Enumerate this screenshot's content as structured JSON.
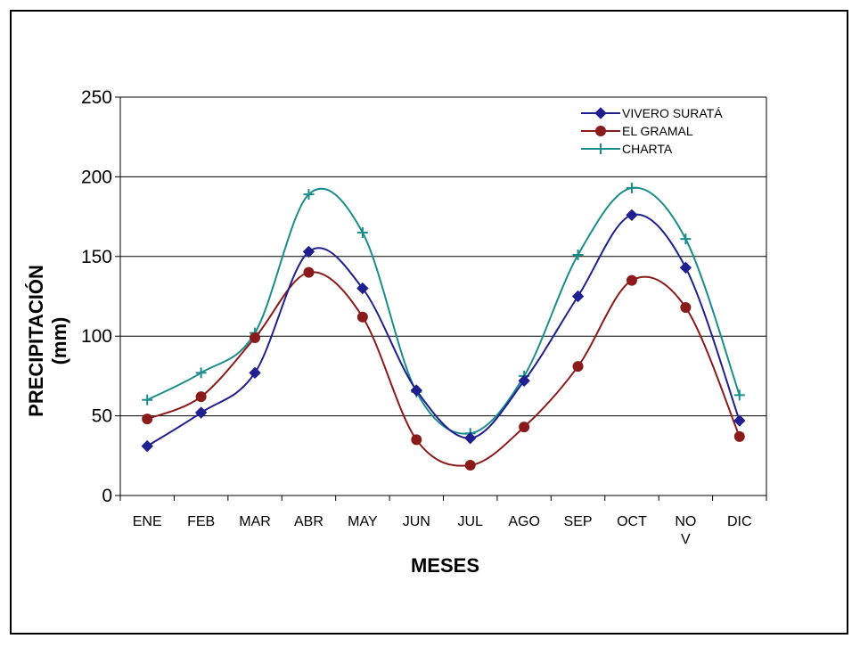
{
  "chart_data": {
    "type": "line",
    "title": "",
    "xlabel": "MESES",
    "ylabel_lines": [
      "PRECIPITACIÓN",
      "(mm)"
    ],
    "categories": [
      "ENE",
      "FEB",
      "MAR",
      "ABR",
      "MAY",
      "JUN",
      "JUL",
      "AGO",
      "SEP",
      "OCT",
      "NO V",
      "DIC"
    ],
    "category_lines": [
      [
        "ENE"
      ],
      [
        "FEB"
      ],
      [
        "MAR"
      ],
      [
        "ABR"
      ],
      [
        "MAY"
      ],
      [
        "JUN"
      ],
      [
        "JUL"
      ],
      [
        "AGO"
      ],
      [
        "SEP"
      ],
      [
        "OCT"
      ],
      [
        "NO",
        "V"
      ],
      [
        "DIC"
      ]
    ],
    "ylim": [
      0,
      250
    ],
    "yticks": [
      0,
      50,
      100,
      150,
      200,
      250
    ],
    "grid": true,
    "legend_position": "top-right",
    "series": [
      {
        "name": "VIVERO SURATÁ",
        "color": "#1f1f8f",
        "marker": "diamond",
        "values": [
          31,
          52,
          77,
          153,
          130,
          66,
          36,
          72,
          125,
          176,
          143,
          47
        ]
      },
      {
        "name": "EL GRAMAL",
        "color": "#8b1a1a",
        "marker": "circle",
        "values": [
          48,
          62,
          99,
          140,
          112,
          35,
          19,
          43,
          81,
          135,
          118,
          37
        ]
      },
      {
        "name": "CHARTA",
        "color": "#1a8c8c",
        "marker": "plus",
        "values": [
          60,
          77,
          102,
          189,
          165,
          65,
          39,
          75,
          151,
          193,
          161,
          63
        ]
      }
    ]
  }
}
